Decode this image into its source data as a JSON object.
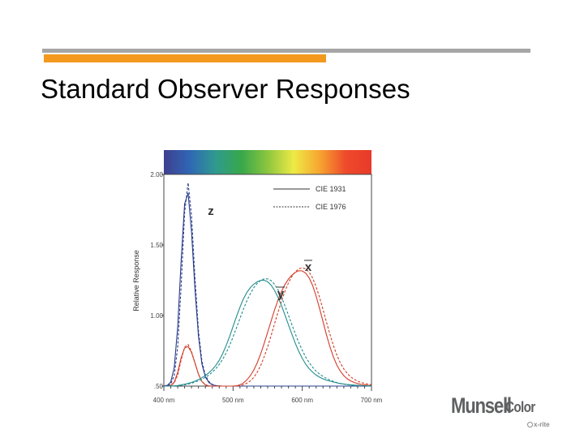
{
  "slide": {
    "title": "Standard Observer Responses"
  },
  "chart_data": {
    "type": "line",
    "ylabel": "Relative Response",
    "xlim": [
      400,
      700
    ],
    "ylim": [
      0.5,
      2.0
    ],
    "x_ticks": [
      400,
      500,
      600,
      700
    ],
    "x_tick_labels": [
      "400 nm",
      "500 nm",
      "600 nm",
      "700 nm"
    ],
    "y_ticks": [
      0.5,
      1.0,
      1.5,
      2.0
    ],
    "y_tick_labels": [
      ".50",
      "1.00",
      "1.50",
      "2.00"
    ],
    "grid": false,
    "legend_position": "top-right",
    "legend": [
      {
        "label": "CIE 1931",
        "style": "solid"
      },
      {
        "label": "CIE 1976",
        "style": "dashed"
      }
    ],
    "curve_labels": {
      "z": "z",
      "x": "x",
      "y": "y"
    },
    "colors": {
      "z": "#2a3c8c",
      "y": "#238c8c",
      "x": "#d23c28",
      "border": "#444444"
    },
    "spectrum_colors": [
      "#3f3f8f",
      "#2f67b5",
      "#2f9a8e",
      "#38a84a",
      "#8cc63f",
      "#eeea45",
      "#f7a530",
      "#ee4a2b",
      "#e83a2a"
    ],
    "x": [
      400,
      405,
      410,
      415,
      420,
      425,
      430,
      435,
      440,
      445,
      450,
      455,
      460,
      465,
      470,
      475,
      480,
      485,
      490,
      495,
      500,
      505,
      510,
      515,
      520,
      525,
      530,
      535,
      540,
      545,
      550,
      555,
      560,
      565,
      570,
      575,
      580,
      585,
      590,
      595,
      600,
      605,
      610,
      615,
      620,
      625,
      630,
      635,
      640,
      645,
      650,
      655,
      660,
      665,
      670,
      675,
      680,
      685,
      690,
      695,
      700
    ],
    "series": [
      {
        "curve": "z",
        "style": "solid",
        "values": [
          0.501,
          0.505,
          0.529,
          0.631,
          0.919,
          1.386,
          1.791,
          1.868,
          1.595,
          1.185,
          0.853,
          0.658,
          0.565,
          0.525,
          0.509,
          0.503,
          0.501,
          0.5,
          0.5,
          0.5,
          0.5,
          0.5,
          0.5,
          0.5,
          0.5,
          0.5,
          0.5,
          0.5,
          0.5,
          0.5,
          0.5,
          0.5,
          0.5,
          0.5,
          0.5,
          0.5,
          0.5,
          0.5,
          0.5,
          0.5,
          0.5,
          0.5,
          0.5,
          0.5,
          0.5,
          0.5,
          0.5,
          0.5,
          0.5,
          0.5,
          0.5,
          0.5,
          0.5,
          0.5,
          0.5,
          0.5,
          0.5,
          0.5,
          0.5,
          0.5,
          0.5
        ]
      },
      {
        "curve": "z",
        "style": "dashed",
        "values": [
          0.5,
          0.503,
          0.515,
          0.575,
          0.778,
          1.209,
          1.728,
          1.94,
          1.708,
          1.265,
          0.89,
          0.677,
          0.576,
          0.532,
          0.512,
          0.504,
          0.501,
          0.5,
          0.5,
          0.5,
          0.5,
          0.5,
          0.5,
          0.5,
          0.5,
          0.5,
          0.5,
          0.5,
          0.5,
          0.5,
          0.5,
          0.5,
          0.5,
          0.5,
          0.5,
          0.5,
          0.5,
          0.5,
          0.5,
          0.5,
          0.5,
          0.5,
          0.5,
          0.5,
          0.5,
          0.5,
          0.5,
          0.5,
          0.5,
          0.5,
          0.5,
          0.5,
          0.5,
          0.5,
          0.5,
          0.5,
          0.5,
          0.5,
          0.5,
          0.5,
          0.5
        ]
      },
      {
        "curve": "x",
        "style": "solid",
        "values": [
          0.5,
          0.5,
          0.505,
          0.527,
          0.597,
          0.7,
          0.77,
          0.78,
          0.739,
          0.663,
          0.584,
          0.533,
          0.509,
          0.501,
          0.5,
          0.5,
          0.5,
          0.5,
          0.5,
          0.5,
          0.5,
          0.502,
          0.509,
          0.522,
          0.544,
          0.574,
          0.614,
          0.666,
          0.73,
          0.803,
          0.882,
          0.962,
          1.04,
          1.11,
          1.171,
          1.22,
          1.258,
          1.286,
          1.306,
          1.317,
          1.316,
          1.3,
          1.266,
          1.212,
          1.138,
          1.05,
          0.956,
          0.863,
          0.778,
          0.706,
          0.649,
          0.606,
          0.574,
          0.552,
          0.537,
          0.526,
          0.518,
          0.512,
          0.509,
          0.506,
          0.504
        ]
      },
      {
        "curve": "x",
        "style": "dashed",
        "values": [
          0.5,
          0.5,
          0.504,
          0.522,
          0.58,
          0.684,
          0.776,
          0.795,
          0.745,
          0.663,
          0.584,
          0.533,
          0.509,
          0.501,
          0.5,
          0.5,
          0.5,
          0.5,
          0.5,
          0.5,
          0.5,
          0.501,
          0.504,
          0.51,
          0.52,
          0.537,
          0.562,
          0.598,
          0.647,
          0.708,
          0.779,
          0.859,
          0.942,
          1.024,
          1.102,
          1.172,
          1.231,
          1.277,
          1.31,
          1.331,
          1.338,
          1.331,
          1.307,
          1.265,
          1.204,
          1.128,
          1.042,
          0.953,
          0.866,
          0.787,
          0.719,
          0.664,
          0.621,
          0.589,
          0.565,
          0.548,
          0.535,
          0.526,
          0.519,
          0.514,
          0.51
        ]
      },
      {
        "curve": "y",
        "style": "solid",
        "values": [
          0.5,
          0.5,
          0.501,
          0.502,
          0.504,
          0.508,
          0.513,
          0.519,
          0.526,
          0.535,
          0.546,
          0.559,
          0.575,
          0.594,
          0.617,
          0.646,
          0.683,
          0.73,
          0.787,
          0.852,
          0.922,
          0.993,
          1.06,
          1.118,
          1.164,
          1.198,
          1.222,
          1.239,
          1.249,
          1.25,
          1.239,
          1.215,
          1.178,
          1.129,
          1.07,
          1.004,
          0.935,
          0.867,
          0.803,
          0.745,
          0.696,
          0.655,
          0.623,
          0.598,
          0.578,
          0.563,
          0.551,
          0.542,
          0.535,
          0.529,
          0.523,
          0.518,
          0.515,
          0.511,
          0.509,
          0.507,
          0.505,
          0.503,
          0.503,
          0.502,
          0.501
        ]
      },
      {
        "curve": "y",
        "style": "dashed",
        "values": [
          0.5,
          0.5,
          0.5,
          0.501,
          0.503,
          0.505,
          0.509,
          0.514,
          0.52,
          0.528,
          0.537,
          0.548,
          0.562,
          0.578,
          0.598,
          0.623,
          0.653,
          0.69,
          0.735,
          0.788,
          0.848,
          0.913,
          0.98,
          1.045,
          1.105,
          1.156,
          1.197,
          1.228,
          1.249,
          1.26,
          1.26,
          1.247,
          1.221,
          1.181,
          1.13,
          1.069,
          1.003,
          0.935,
          0.869,
          0.808,
          0.753,
          0.705,
          0.666,
          0.633,
          0.606,
          0.585,
          0.568,
          0.554,
          0.543,
          0.533,
          0.525,
          0.519,
          0.514,
          0.51,
          0.507,
          0.505,
          0.504,
          0.503,
          0.502,
          0.501,
          0.501
        ]
      }
    ]
  },
  "logo": {
    "brand": "Munsell",
    "brand_suffix": "Color",
    "parent": "x-rite"
  }
}
